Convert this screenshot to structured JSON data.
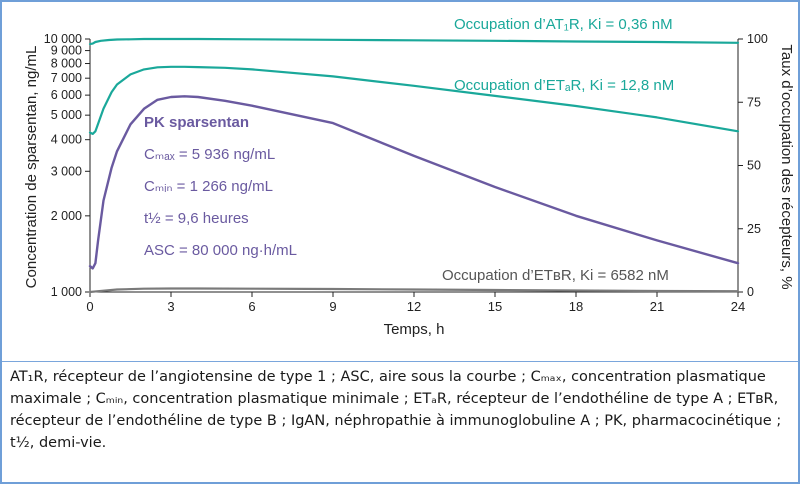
{
  "chart_data": {
    "type": "line",
    "xlabel": "Temps, h",
    "ylabel_left": "Concentration de sparsentan, ng/mL",
    "ylabel_right": "Taux d’occupation des récepteurs, %",
    "xlim": [
      0,
      24
    ],
    "x_ticks": [
      "0",
      "3",
      "6",
      "9",
      "12",
      "15",
      "18",
      "21",
      "24"
    ],
    "ylim_left": [
      1000,
      10000
    ],
    "yscale_left": "log",
    "y_ticks_left": [
      "1 000",
      "2 000",
      "3 000",
      "4 000",
      "5 000",
      "6 000",
      "7 000",
      "8 000",
      "9 000",
      "10 000"
    ],
    "ylim_right": [
      0,
      100
    ],
    "y_ticks_right": [
      "0",
      "25",
      "50",
      "75",
      "100"
    ],
    "series": [
      {
        "name": "Occupation d’AT₁R, Ki = 0,36 nM",
        "axis": "right",
        "color": "#1aa89a",
        "x": [
          0,
          0.1,
          0.2,
          0.4,
          0.7,
          1,
          1.5,
          2,
          3,
          4,
          6,
          9,
          12,
          15,
          18,
          21,
          24
        ],
        "y": [
          98.0,
          98.2,
          98.8,
          99.3,
          99.6,
          99.8,
          99.9,
          100,
          100,
          100,
          99.9,
          99.7,
          99.5,
          99.3,
          99.0,
          98.8,
          98.5
        ]
      },
      {
        "name": "Occupation d’ETₐR, Ki = 12,8 nM",
        "axis": "right",
        "color": "#1aa89a",
        "x": [
          0,
          0.1,
          0.2,
          0.3,
          0.5,
          0.8,
          1,
          1.5,
          2,
          2.5,
          3,
          3.5,
          4,
          5,
          6,
          9,
          12,
          15,
          18,
          21,
          24
        ],
        "y": [
          63.0,
          62.5,
          63.5,
          66.5,
          72.5,
          79.0,
          82.0,
          86.0,
          88.0,
          88.8,
          89.0,
          89.0,
          88.9,
          88.6,
          88.0,
          85.2,
          81.5,
          77.5,
          73.5,
          69.0,
          63.5
        ]
      },
      {
        "name": "Occupation d’ETʙR, Ki = 6582 nM",
        "axis": "right",
        "color": "#7a7a7a",
        "x": [
          0,
          0.3,
          1,
          2,
          3,
          4,
          6,
          9,
          12,
          15,
          18,
          21,
          24
        ],
        "y": [
          0.0,
          0.3,
          1.0,
          1.3,
          1.4,
          1.4,
          1.3,
          1.2,
          1.0,
          0.8,
          0.6,
          0.4,
          0.3
        ]
      },
      {
        "name": "PK sparsentan",
        "axis": "left",
        "color": "#6a5aa0",
        "x": [
          0,
          0.1,
          0.2,
          0.3,
          0.5,
          0.8,
          1,
          1.5,
          2,
          2.5,
          3,
          3.5,
          4,
          5,
          6,
          9,
          12,
          15,
          18,
          21,
          24
        ],
        "y": [
          1266,
          1240,
          1300,
          1600,
          2300,
          3100,
          3600,
          4600,
          5300,
          5750,
          5900,
          5936,
          5900,
          5700,
          5450,
          4650,
          3450,
          2600,
          2000,
          1600,
          1300
        ]
      }
    ],
    "annotations": {
      "at1r": "Occupation d’AT₁R, Ki = 0,36 nM",
      "etar": "Occupation d’ETₐR, Ki = 12,8 nM",
      "etbr": "Occupation d’ETʙR, Ki = 6582 nM",
      "pk_title": "PK sparsentan",
      "cmax": "Cₘₐₓ = 5 936 ng/mL",
      "cmin": "Cₘᵢₙ = 1 266 ng/mL",
      "thalf": "t½ = 9,6 heures",
      "asc": "ASC = 80 000 ng·h/mL"
    }
  },
  "caption": "AT₁R, récepteur de l’angiotensine de type 1 ; ASC, aire sous la courbe ; Cₘₐₓ, concentration plasmatique maximale ; Cₘᵢₙ, concentration plasmatique minimale ; ETₐR, récepteur de l’endothéline de type A ; ETʙR, récepteur de l’endothéline de type B ; IgAN, néphropathie à immunoglobuline A ; PK, pharmacocinétique ; t½, demi-vie."
}
